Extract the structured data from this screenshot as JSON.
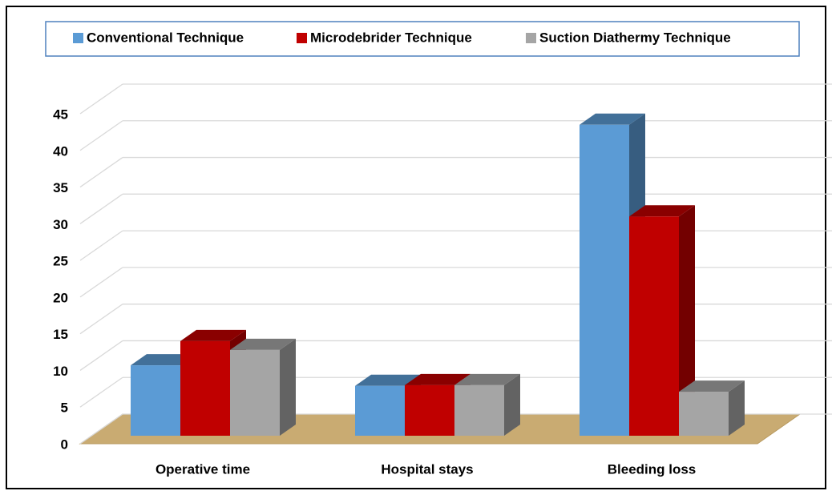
{
  "chart_data": {
    "type": "bar3d",
    "categories": [
      "Operative time",
      "Hospital stays",
      "Bleeding loss"
    ],
    "series": [
      {
        "name": "Conventional Technique",
        "color": "#5b9bd5",
        "values": [
          9.6,
          6.8,
          42.4
        ]
      },
      {
        "name": "Microdebrider Technique",
        "color": "#c00000",
        "values": [
          12.9,
          6.9,
          29.9
        ]
      },
      {
        "name": "Suction Diathermy Technique",
        "color": "#a5a5a5",
        "values": [
          11.7,
          6.9,
          6.0
        ]
      }
    ],
    "ylim": [
      0,
      45
    ],
    "yticks": [
      0,
      5,
      10,
      15,
      20,
      25,
      30,
      35,
      40,
      45
    ],
    "grid": true,
    "legend": "top"
  }
}
